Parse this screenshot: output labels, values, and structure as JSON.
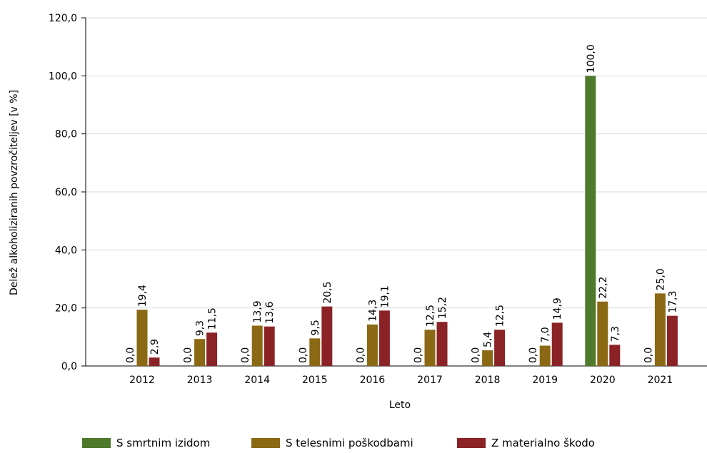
{
  "chart_data": {
    "type": "bar",
    "xlabel": "Leto",
    "ylabel": "Delež alkoholiziranih povzročiteljev [v %]",
    "ylim": [
      0,
      120
    ],
    "yticks": [
      "0,0",
      "20,0",
      "40,0",
      "60,0",
      "80,0",
      "100,0",
      "120,0"
    ],
    "ytick_values": [
      0,
      20,
      40,
      60,
      80,
      100,
      120
    ],
    "grid": "horizontal",
    "legend_position": "bottom",
    "categories": [
      "2012",
      "2013",
      "2014",
      "2015",
      "2016",
      "2017",
      "2018",
      "2019",
      "2020",
      "2021"
    ],
    "series": [
      {
        "name": "S smrtnim izidom",
        "color": "#4f7a2c",
        "values": [
          0.0,
          0.0,
          0.0,
          0.0,
          0.0,
          0.0,
          0.0,
          0.0,
          100.0,
          0.0
        ],
        "labels": [
          "0,0",
          "0,0",
          "0,0",
          "0,0",
          "0,0",
          "0,0",
          "0,0",
          "0,0",
          "100,0",
          "0,0"
        ]
      },
      {
        "name": "S telesnimi poškodbami",
        "color": "#8b6914",
        "values": [
          19.4,
          9.3,
          13.9,
          9.5,
          14.3,
          12.5,
          5.4,
          7.0,
          22.2,
          25.0
        ],
        "labels": [
          "19,4",
          "9,3",
          "13,9",
          "9,5",
          "14,3",
          "12,5",
          "5,4",
          "7,0",
          "22,2",
          "25,0"
        ]
      },
      {
        "name": "Z materialno škodo",
        "color": "#8b2326",
        "values": [
          2.9,
          11.5,
          13.6,
          20.5,
          19.1,
          15.2,
          12.5,
          14.9,
          7.3,
          17.3
        ],
        "labels": [
          "2,9",
          "11,5",
          "13,6",
          "20,5",
          "19,1",
          "15,2",
          "12,5",
          "14,9",
          "7,3",
          "17,3"
        ]
      }
    ]
  }
}
